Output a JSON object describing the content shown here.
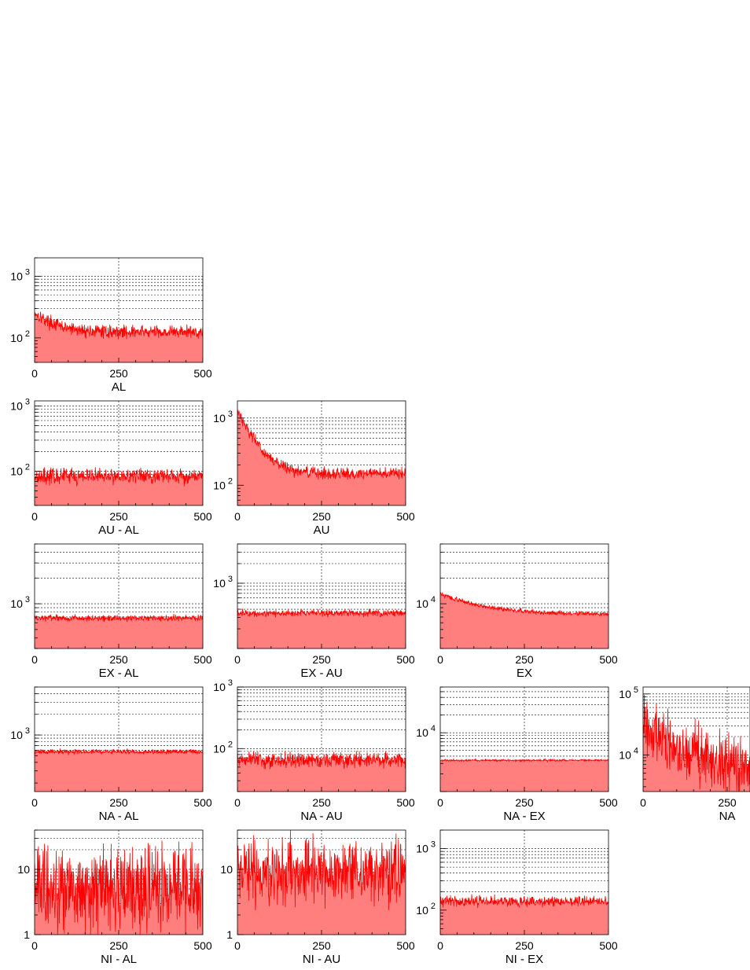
{
  "chart_data": [
    {
      "type": "area",
      "id": "AL",
      "label": "AL",
      "row": 0,
      "col": 0,
      "xlim": [
        0,
        500
      ],
      "xticks": [
        0,
        250,
        500
      ],
      "yscale": "log",
      "ylim": [
        40,
        2000
      ],
      "ytick_labels": [
        {
          "v": 100,
          "base": "10",
          "exp": "2"
        },
        {
          "v": 1000,
          "base": "10",
          "exp": "3"
        }
      ],
      "series": [
        {
          "start": 260,
          "decay": 50,
          "level": 125,
          "noise": 0.12
        }
      ],
      "grid": true
    },
    {
      "type": "area",
      "id": "AU-AL",
      "label": "AU - AL",
      "row": 1,
      "col": 0,
      "xlim": [
        0,
        500
      ],
      "xticks": [
        0,
        250,
        500
      ],
      "yscale": "log",
      "ylim": [
        30,
        1200
      ],
      "ytick_labels": [
        {
          "v": 100,
          "base": "10",
          "exp": "2"
        },
        {
          "v": 1000,
          "base": "10",
          "exp": "3"
        }
      ],
      "series": [
        {
          "start": 85,
          "decay": 50,
          "level": 85,
          "noise": 0.14
        }
      ],
      "grid": true
    },
    {
      "type": "area",
      "id": "AU",
      "label": "AU",
      "row": 1,
      "col": 1,
      "xlim": [
        0,
        500
      ],
      "xticks": [
        0,
        250,
        500
      ],
      "yscale": "log",
      "ylim": [
        50,
        1800
      ],
      "ytick_labels": [
        {
          "v": 100,
          "base": "10",
          "exp": "2"
        },
        {
          "v": 1000,
          "base": "10",
          "exp": "3"
        }
      ],
      "series": [
        {
          "start": 1300,
          "decay": 40,
          "level": 150,
          "noise": 0.1
        }
      ],
      "grid": true
    },
    {
      "type": "area",
      "id": "EX-AL",
      "label": "EX - AL",
      "row": 2,
      "col": 0,
      "xlim": [
        0,
        500
      ],
      "xticks": [
        0,
        250,
        500
      ],
      "yscale": "log",
      "ylim": [
        300,
        5000
      ],
      "ytick_labels": [
        {
          "v": 1000,
          "base": "10",
          "exp": "3"
        }
      ],
      "series": [
        {
          "start": 680,
          "decay": 50,
          "level": 680,
          "noise": 0.04
        }
      ],
      "grid": true
    },
    {
      "type": "area",
      "id": "EX-AU",
      "label": "EX - AU",
      "row": 2,
      "col": 1,
      "xlim": [
        0,
        500
      ],
      "xticks": [
        0,
        250,
        500
      ],
      "yscale": "log",
      "ylim": [
        100,
        4000
      ],
      "ytick_labels": [
        {
          "v": 1000,
          "base": "10",
          "exp": "3"
        }
      ],
      "series": [
        {
          "start": 350,
          "decay": 50,
          "level": 350,
          "noise": 0.06
        }
      ],
      "grid": true
    },
    {
      "type": "area",
      "id": "EX",
      "label": "EX",
      "row": 2,
      "col": 2,
      "xlim": [
        0,
        500
      ],
      "xticks": [
        0,
        250,
        500
      ],
      "yscale": "log",
      "ylim": [
        3000,
        50000
      ],
      "ytick_labels": [
        {
          "v": 10000,
          "base": "10",
          "exp": "4"
        }
      ],
      "series": [
        {
          "start": 13000,
          "decay": 120,
          "level": 7500,
          "noise": 0.03
        }
      ],
      "grid": true
    },
    {
      "type": "area",
      "id": "NA-AL",
      "label": "NA - AL",
      "row": 3,
      "col": 0,
      "xlim": [
        0,
        500
      ],
      "xticks": [
        0,
        250,
        500
      ],
      "yscale": "log",
      "ylim": [
        150,
        5000
      ],
      "ytick_labels": [
        {
          "v": 1000,
          "base": "10",
          "exp": "3"
        }
      ],
      "series": [
        {
          "start": 570,
          "decay": 50,
          "level": 570,
          "noise": 0.04
        }
      ],
      "grid": true
    },
    {
      "type": "area",
      "id": "NA-AU",
      "label": "NA - AU",
      "row": 3,
      "col": 1,
      "xlim": [
        0,
        500
      ],
      "xticks": [
        0,
        250,
        500
      ],
      "yscale": "log",
      "ylim": [
        20,
        1000
      ],
      "ytick_labels": [
        {
          "v": 100,
          "base": "10",
          "exp": "2"
        },
        {
          "v": 1000,
          "base": "10",
          "exp": "3"
        }
      ],
      "series": [
        {
          "start": 65,
          "decay": 50,
          "level": 65,
          "noise": 0.14
        }
      ],
      "grid": true
    },
    {
      "type": "area",
      "id": "NA-EX",
      "label": "NA - EX",
      "row": 3,
      "col": 2,
      "xlim": [
        0,
        500
      ],
      "xticks": [
        0,
        250,
        500
      ],
      "yscale": "log",
      "ylim": [
        1000,
        60000
      ],
      "ytick_labels": [
        {
          "v": 10000,
          "base": "10",
          "exp": "4"
        }
      ],
      "series": [
        {
          "start": 3400,
          "decay": 50,
          "level": 3400,
          "noise": 0.02
        }
      ],
      "grid": true
    },
    {
      "type": "area",
      "id": "NA",
      "label": "NA",
      "row": 3,
      "col": 3,
      "xlim": [
        0,
        500
      ],
      "xticks": [
        0,
        250
      ],
      "yscale": "log",
      "ylim": [
        2500,
        130000
      ],
      "ytick_labels": [
        {
          "v": 10000,
          "base": "10",
          "exp": "4"
        },
        {
          "v": 100000,
          "base": "10",
          "exp": "5"
        }
      ],
      "series": [
        {
          "start": 30000,
          "decay": 80,
          "level": 6500,
          "noise": 0.55
        }
      ],
      "grid": true
    },
    {
      "type": "area",
      "id": "NI-AL",
      "label": "NI - AL",
      "row": 4,
      "col": 0,
      "xlim": [
        0,
        500
      ],
      "xticks": [
        0,
        250,
        500
      ],
      "yscale": "log",
      "ylim": [
        1,
        40
      ],
      "ytick_labels": [
        {
          "v": 1,
          "base": "1",
          "exp": ""
        },
        {
          "v": 10,
          "base": "10",
          "exp": ""
        }
      ],
      "series": [
        {
          "start": 5,
          "decay": 50,
          "level": 5,
          "noise": 0.75
        }
      ],
      "grid": true
    },
    {
      "type": "area",
      "id": "NI-AU",
      "label": "NI - AU",
      "row": 4,
      "col": 1,
      "xlim": [
        0,
        500
      ],
      "xticks": [
        0,
        250,
        500
      ],
      "yscale": "log",
      "ylim": [
        1,
        40
      ],
      "ytick_labels": [
        {
          "v": 1,
          "base": "1",
          "exp": ""
        },
        {
          "v": 10,
          "base": "10",
          "exp": ""
        }
      ],
      "series": [
        {
          "start": 9,
          "decay": 50,
          "level": 9,
          "noise": 0.55
        }
      ],
      "grid": true
    },
    {
      "type": "area",
      "id": "NI-EX",
      "label": "NI - EX",
      "row": 4,
      "col": 2,
      "xlim": [
        0,
        500
      ],
      "xticks": [
        0,
        250,
        500
      ],
      "yscale": "log",
      "ylim": [
        40,
        2000
      ],
      "ytick_labels": [
        {
          "v": 100,
          "base": "10",
          "exp": "2"
        },
        {
          "v": 1000,
          "base": "10",
          "exp": "3"
        }
      ],
      "series": [
        {
          "start": 140,
          "decay": 50,
          "level": 140,
          "noise": 0.1
        }
      ],
      "grid": true
    }
  ],
  "colors": {
    "line": "#ff0000",
    "fill": "#ff7f7f",
    "grid": "#000000",
    "frame": "#000000"
  }
}
